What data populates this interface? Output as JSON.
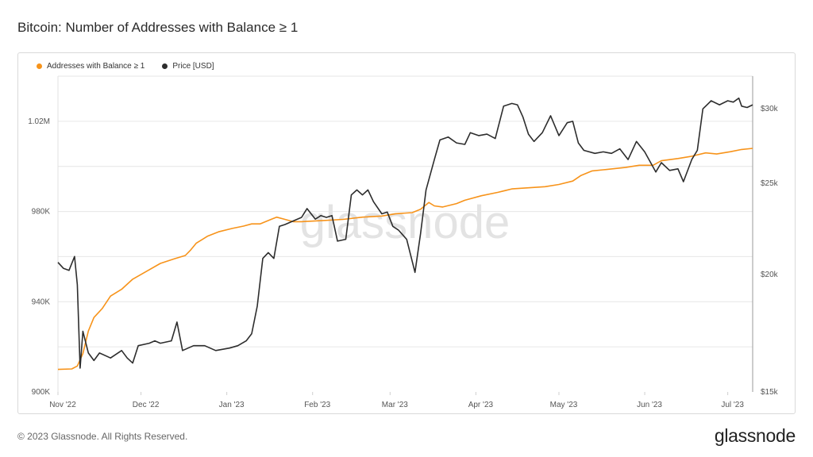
{
  "title": "Bitcoin: Number of Addresses with Balance ≥ 1",
  "footer": {
    "copyright": "© 2023 Glassnode. All Rights Reserved.",
    "brand": "glassnode"
  },
  "watermark": "glassnode",
  "colors": {
    "addresses": "#f7931a",
    "price": "#2d2d2d",
    "grid": "#e6e6e6",
    "axis_text": "#555555"
  },
  "chart_data": {
    "type": "line",
    "title": "Bitcoin: Number of Addresses with Balance ≥ 1",
    "legend": "top-left",
    "grid": true,
    "x_range": [
      "2022-11-01",
      "2023-07-10"
    ],
    "x_ticks": [
      {
        "label": "Nov '22",
        "date": "2022-11-01"
      },
      {
        "label": "Dec '22",
        "date": "2022-12-01"
      },
      {
        "label": "Jan '23",
        "date": "2023-01-01"
      },
      {
        "label": "Feb '23",
        "date": "2023-02-01"
      },
      {
        "label": "Mar '23",
        "date": "2023-03-01"
      },
      {
        "label": "Apr '23",
        "date": "2023-04-01"
      },
      {
        "label": "May '23",
        "date": "2023-05-01"
      },
      {
        "label": "Jun '23",
        "date": "2023-06-01"
      },
      {
        "label": "Jul '23",
        "date": "2023-07-01"
      }
    ],
    "y_left": {
      "range": [
        900000,
        1040000
      ],
      "ticks": [
        {
          "label": "900K",
          "value": 900000
        },
        {
          "label": "940K",
          "value": 940000
        },
        {
          "label": "980K",
          "value": 980000
        },
        {
          "label": "1.02M",
          "value": 1020000
        }
      ]
    },
    "y_right": {
      "scale": "log",
      "range": [
        15000,
        32500
      ],
      "ticks": [
        {
          "label": "$15k",
          "value": 15000
        },
        {
          "label": "$20k",
          "value": 20000
        },
        {
          "label": "$25k",
          "value": 25000
        },
        {
          "label": "$30k",
          "value": 30000
        }
      ]
    },
    "series": [
      {
        "name": "Addresses with Balance ≥ 1",
        "axis": "left",
        "points": [
          [
            "2022-11-01",
            910000
          ],
          [
            "2022-11-06",
            910200
          ],
          [
            "2022-11-08",
            911500
          ],
          [
            "2022-11-10",
            917000
          ],
          [
            "2022-11-12",
            927000
          ],
          [
            "2022-11-14",
            933000
          ],
          [
            "2022-11-17",
            937000
          ],
          [
            "2022-11-20",
            942500
          ],
          [
            "2022-11-24",
            945500
          ],
          [
            "2022-11-28",
            950000
          ],
          [
            "2022-12-03",
            953500
          ],
          [
            "2022-12-08",
            957000
          ],
          [
            "2022-12-13",
            959000
          ],
          [
            "2022-12-17",
            960500
          ],
          [
            "2022-12-19",
            963000
          ],
          [
            "2022-12-21",
            966000
          ],
          [
            "2022-12-25",
            969000
          ],
          [
            "2022-12-29",
            971000
          ],
          [
            "2023-01-03",
            972500
          ],
          [
            "2023-01-07",
            973500
          ],
          [
            "2023-01-10",
            974500
          ],
          [
            "2023-01-13",
            974500
          ],
          [
            "2023-01-17",
            976500
          ],
          [
            "2023-01-19",
            977500
          ],
          [
            "2023-01-22",
            976500
          ],
          [
            "2023-01-25",
            975500
          ],
          [
            "2023-01-28",
            975500
          ],
          [
            "2023-02-05",
            976000
          ],
          [
            "2023-02-12",
            976500
          ],
          [
            "2023-02-19",
            977500
          ],
          [
            "2023-02-26",
            978000
          ],
          [
            "2023-03-03",
            979000
          ],
          [
            "2023-03-09",
            979500
          ],
          [
            "2023-03-12",
            981000
          ],
          [
            "2023-03-15",
            984000
          ],
          [
            "2023-03-17",
            982500
          ],
          [
            "2023-03-20",
            982000
          ],
          [
            "2023-03-25",
            983500
          ],
          [
            "2023-03-28",
            985000
          ],
          [
            "2023-04-03",
            987000
          ],
          [
            "2023-04-09",
            988500
          ],
          [
            "2023-04-14",
            990000
          ],
          [
            "2023-04-20",
            990500
          ],
          [
            "2023-04-26",
            991000
          ],
          [
            "2023-05-01",
            992000
          ],
          [
            "2023-05-06",
            993500
          ],
          [
            "2023-05-09",
            996000
          ],
          [
            "2023-05-13",
            998000
          ],
          [
            "2023-05-17",
            998500
          ],
          [
            "2023-05-25",
            999500
          ],
          [
            "2023-05-30",
            1000500
          ],
          [
            "2023-06-04",
            1000500
          ],
          [
            "2023-06-07",
            1002500
          ],
          [
            "2023-06-10",
            1003000
          ],
          [
            "2023-06-13",
            1003500
          ],
          [
            "2023-06-18",
            1004500
          ],
          [
            "2023-06-23",
            1006000
          ],
          [
            "2023-06-27",
            1005500
          ],
          [
            "2023-07-02",
            1006500
          ],
          [
            "2023-07-06",
            1007500
          ],
          [
            "2023-07-10",
            1008000
          ]
        ]
      },
      {
        "name": "Price [USD]",
        "axis": "right",
        "points": [
          [
            "2022-11-01",
            20600
          ],
          [
            "2022-11-03",
            20300
          ],
          [
            "2022-11-05",
            20200
          ],
          [
            "2022-11-07",
            20900
          ],
          [
            "2022-11-08",
            19500
          ],
          [
            "2022-11-09",
            15900
          ],
          [
            "2022-11-10",
            17400
          ],
          [
            "2022-11-12",
            16500
          ],
          [
            "2022-11-14",
            16200
          ],
          [
            "2022-11-16",
            16500
          ],
          [
            "2022-11-20",
            16300
          ],
          [
            "2022-11-24",
            16600
          ],
          [
            "2022-11-26",
            16300
          ],
          [
            "2022-11-28",
            16100
          ],
          [
            "2022-11-30",
            16800
          ],
          [
            "2022-12-04",
            16900
          ],
          [
            "2022-12-06",
            17000
          ],
          [
            "2022-12-08",
            16900
          ],
          [
            "2022-12-12",
            17000
          ],
          [
            "2022-12-14",
            17800
          ],
          [
            "2022-12-16",
            16600
          ],
          [
            "2022-12-20",
            16800
          ],
          [
            "2022-12-24",
            16800
          ],
          [
            "2022-12-28",
            16600
          ],
          [
            "2023-01-02",
            16700
          ],
          [
            "2023-01-05",
            16800
          ],
          [
            "2023-01-08",
            17000
          ],
          [
            "2023-01-10",
            17300
          ],
          [
            "2023-01-12",
            18500
          ],
          [
            "2023-01-14",
            20800
          ],
          [
            "2023-01-16",
            21100
          ],
          [
            "2023-01-18",
            20800
          ],
          [
            "2023-01-20",
            22500
          ],
          [
            "2023-01-22",
            22600
          ],
          [
            "2023-01-25",
            22800
          ],
          [
            "2023-01-28",
            23000
          ],
          [
            "2023-01-30",
            23500
          ],
          [
            "2023-02-02",
            22900
          ],
          [
            "2023-02-04",
            23100
          ],
          [
            "2023-02-06",
            23000
          ],
          [
            "2023-02-08",
            23100
          ],
          [
            "2023-02-10",
            21700
          ],
          [
            "2023-02-13",
            21800
          ],
          [
            "2023-02-15",
            24300
          ],
          [
            "2023-02-17",
            24600
          ],
          [
            "2023-02-19",
            24300
          ],
          [
            "2023-02-21",
            24600
          ],
          [
            "2023-02-23",
            23900
          ],
          [
            "2023-02-26",
            23200
          ],
          [
            "2023-02-28",
            23300
          ],
          [
            "2023-03-02",
            22500
          ],
          [
            "2023-03-04",
            22300
          ],
          [
            "2023-03-07",
            21800
          ],
          [
            "2023-03-10",
            20100
          ],
          [
            "2023-03-12",
            22100
          ],
          [
            "2023-03-14",
            24600
          ],
          [
            "2023-03-17",
            26500
          ],
          [
            "2023-03-19",
            27800
          ],
          [
            "2023-03-22",
            28000
          ],
          [
            "2023-03-25",
            27600
          ],
          [
            "2023-03-28",
            27500
          ],
          [
            "2023-03-30",
            28300
          ],
          [
            "2023-04-02",
            28100
          ],
          [
            "2023-04-05",
            28200
          ],
          [
            "2023-04-08",
            27900
          ],
          [
            "2023-04-11",
            30200
          ],
          [
            "2023-04-14",
            30400
          ],
          [
            "2023-04-16",
            30300
          ],
          [
            "2023-04-18",
            29400
          ],
          [
            "2023-04-20",
            28200
          ],
          [
            "2023-04-22",
            27700
          ],
          [
            "2023-04-25",
            28300
          ],
          [
            "2023-04-28",
            29500
          ],
          [
            "2023-05-01",
            28100
          ],
          [
            "2023-05-04",
            29000
          ],
          [
            "2023-05-06",
            29100
          ],
          [
            "2023-05-08",
            27600
          ],
          [
            "2023-05-10",
            27100
          ],
          [
            "2023-05-14",
            26900
          ],
          [
            "2023-05-17",
            27000
          ],
          [
            "2023-05-20",
            26900
          ],
          [
            "2023-05-23",
            27200
          ],
          [
            "2023-05-26",
            26500
          ],
          [
            "2023-05-29",
            27700
          ],
          [
            "2023-06-01",
            27000
          ],
          [
            "2023-06-05",
            25700
          ],
          [
            "2023-06-07",
            26300
          ],
          [
            "2023-06-10",
            25800
          ],
          [
            "2023-06-13",
            25900
          ],
          [
            "2023-06-15",
            25100
          ],
          [
            "2023-06-18",
            26500
          ],
          [
            "2023-06-20",
            27100
          ],
          [
            "2023-06-22",
            30000
          ],
          [
            "2023-06-25",
            30600
          ],
          [
            "2023-06-28",
            30300
          ],
          [
            "2023-07-01",
            30600
          ],
          [
            "2023-07-03",
            30500
          ],
          [
            "2023-07-05",
            30800
          ],
          [
            "2023-07-06",
            30200
          ],
          [
            "2023-07-08",
            30100
          ],
          [
            "2023-07-10",
            30300
          ]
        ]
      }
    ]
  }
}
